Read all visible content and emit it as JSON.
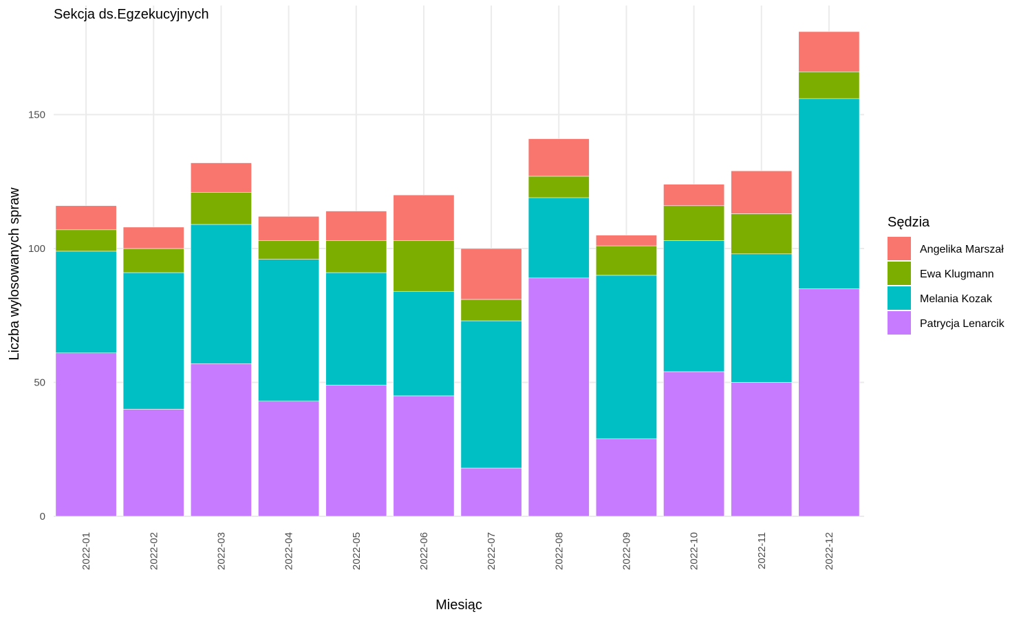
{
  "chart_data": {
    "type": "bar",
    "stacked": true,
    "title": "Sekcja ds.Egzekucyjnych",
    "xlabel": "Miesiąc",
    "ylabel": "Liczba wylosowanych spraw",
    "ylim": [
      0,
      185
    ],
    "yticks": [
      0,
      50,
      100,
      150
    ],
    "grid": true,
    "legend_title": "Sędzia",
    "legend_position": "right",
    "categories": [
      "2022-01",
      "2022-02",
      "2022-03",
      "2022-04",
      "2022-05",
      "2022-06",
      "2022-07",
      "2022-08",
      "2022-09",
      "2022-10",
      "2022-11",
      "2022-12"
    ],
    "series": [
      {
        "name": "Patrycja Lenarcik",
        "color": "#C77CFF",
        "values": [
          61,
          40,
          57,
          43,
          49,
          45,
          18,
          89,
          29,
          54,
          50,
          85
        ]
      },
      {
        "name": "Melania Kozak",
        "color": "#00BFC4",
        "values": [
          38,
          51,
          52,
          53,
          42,
          39,
          55,
          30,
          61,
          49,
          48,
          71
        ]
      },
      {
        "name": "Ewa Klugmann",
        "color": "#7CAE00",
        "values": [
          8,
          9,
          12,
          7,
          12,
          19,
          8,
          8,
          11,
          13,
          15,
          10
        ]
      },
      {
        "name": "Angelika Marszał",
        "color": "#F8766D",
        "values": [
          9,
          8,
          11,
          9,
          11,
          17,
          19,
          14,
          4,
          8,
          16,
          15
        ]
      }
    ],
    "legend_order": [
      "Angelika Marszał",
      "Ewa Klugmann",
      "Melania Kozak",
      "Patrycja Lenarcik"
    ]
  }
}
